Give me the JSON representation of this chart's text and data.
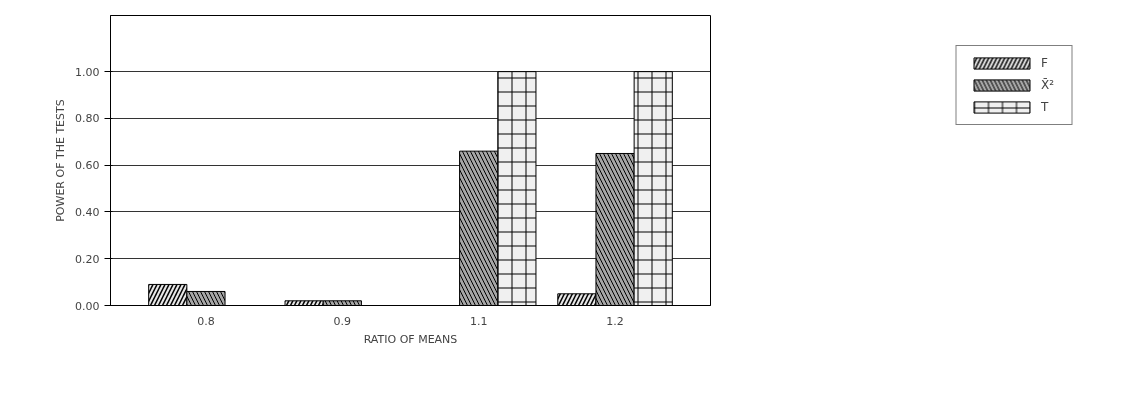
{
  "chart_data": {
    "type": "bar",
    "xlabel": "RATIO OF MEANS",
    "ylabel": "POWER OF THE TESTS",
    "categories": [
      "0.8",
      "0.9",
      "1.1",
      "1.2"
    ],
    "series": [
      {
        "name": "F",
        "color": "#e6e6e6",
        "values": [
          0.09,
          0.02,
          null,
          0.05
        ]
      },
      {
        "name": "X̄²",
        "color": "#a6a6a6",
        "values": [
          0.06,
          0.02,
          0.66,
          0.65
        ]
      },
      {
        "name": "T",
        "color": "#f0f0f0",
        "values": [
          null,
          null,
          1.0,
          1.0
        ]
      }
    ],
    "ylim": [
      0,
      1.24
    ],
    "yticks": [
      {
        "value": 0,
        "label": "0.00"
      },
      {
        "value": 0.2,
        "label": "0.20"
      },
      {
        "value": 0.4,
        "label": "0.40"
      },
      {
        "value": 0.6,
        "label": "0.60"
      },
      {
        "value": 0.8,
        "label": "0.80"
      },
      {
        "value": 1.0,
        "label": "1.00"
      }
    ],
    "grid": "y",
    "legend": "right"
  }
}
